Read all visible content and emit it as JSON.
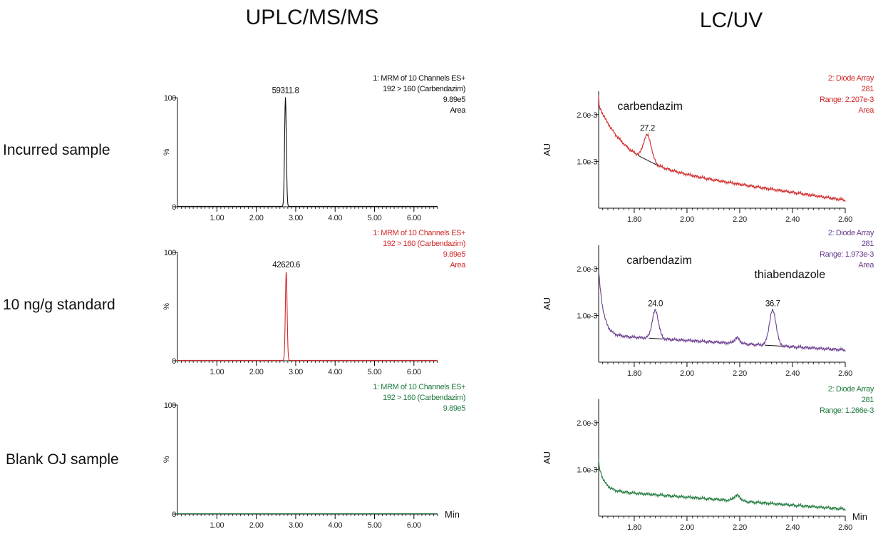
{
  "headers": {
    "left": "UPLC/MS/MS",
    "right": "LC/UV"
  },
  "row_labels": [
    "Incurred sample",
    "10 ng/g standard",
    "Blank OJ sample"
  ],
  "min_label": "Min",
  "colors": {
    "row1": "#d22828",
    "row2": "#6a3d8f",
    "row3": "#1e7a3c",
    "black": "#111111"
  },
  "chart_data": [
    {
      "id": "ms-1",
      "type": "line",
      "technique": "UPLC/MS/MS",
      "row_label": "Incurred sample",
      "trace_color": "black",
      "info_color": "black",
      "xlim": [
        0,
        6.6
      ],
      "ylim": [
        0,
        100
      ],
      "show_y_label": true,
      "y_label": "%",
      "y_ticks": [
        0,
        100
      ],
      "y_tick_labels": [
        "0",
        "100"
      ],
      "x_ticks": [
        1.0,
        2.0,
        3.0,
        4.0,
        5.0,
        6.0
      ],
      "x_tick_labels": [
        "1.00",
        "2.00",
        "3.00",
        "4.00",
        "5.00",
        "6.00"
      ],
      "info": [
        "1: MRM of 10 Channels ES+",
        "192 > 160 (Carbendazim)",
        "9.89e5",
        "Area"
      ],
      "peaks": [
        {
          "center": 2.74,
          "width": 0.022,
          "height": 100,
          "label": "59311.8"
        }
      ],
      "baseline": 0.4
    },
    {
      "id": "ms-2",
      "type": "line",
      "technique": "UPLC/MS/MS",
      "row_label": "10 ng/g standard",
      "trace_color": "row1",
      "info_color": "row1",
      "xlim": [
        0,
        6.6
      ],
      "ylim": [
        0,
        100
      ],
      "show_y_label": true,
      "y_label": "%",
      "y_ticks": [
        0,
        100
      ],
      "y_tick_labels": [
        "0",
        "100"
      ],
      "x_ticks": [
        1.0,
        2.0,
        3.0,
        4.0,
        5.0,
        6.0
      ],
      "x_tick_labels": [
        "1.00",
        "2.00",
        "3.00",
        "4.00",
        "5.00",
        "6.00"
      ],
      "info": [
        "1: MRM of 10 Channels ES+",
        "192 > 160 (Carbendazim)",
        "9.89e5",
        "Area"
      ],
      "peaks": [
        {
          "center": 2.76,
          "width": 0.022,
          "height": 82,
          "label": "42620.6"
        }
      ],
      "baseline": 0.4
    },
    {
      "id": "ms-3",
      "type": "line",
      "technique": "UPLC/MS/MS",
      "row_label": "Blank OJ sample",
      "trace_color": "row3",
      "info_color": "row3",
      "xlim": [
        0,
        6.6
      ],
      "ylim": [
        0,
        100
      ],
      "show_y_label": true,
      "y_label": "%",
      "y_ticks": [
        0,
        100
      ],
      "y_tick_labels": [
        "0",
        "100"
      ],
      "x_ticks": [
        1.0,
        2.0,
        3.0,
        4.0,
        5.0,
        6.0
      ],
      "x_tick_labels": [
        "1.00",
        "2.00",
        "3.00",
        "4.00",
        "5.00",
        "6.00"
      ],
      "info": [
        "1: MRM of 10 Channels ES+",
        "192 > 160 (Carbendazim)",
        "9.89e5"
      ],
      "peaks": [],
      "baseline": 0.4,
      "min_label": true
    },
    {
      "id": "uv-1",
      "type": "line",
      "technique": "LC/UV",
      "row_label": "Incurred sample",
      "trace_color": "row1",
      "info_color": "row1",
      "xlim": [
        1.665,
        2.6
      ],
      "ylim": [
        0,
        0.0025
      ],
      "show_y_label": true,
      "y_label": "AU",
      "y_ticks": [
        0.001,
        0.002
      ],
      "y_tick_labels": [
        "1.0e-3",
        "2.0e-3"
      ],
      "x_ticks": [
        1.8,
        2.0,
        2.2,
        2.4,
        2.6
      ],
      "x_tick_labels": [
        "1.80",
        "2.00",
        "2.20",
        "2.40",
        "2.60"
      ],
      "info": [
        "2: Diode Array",
        "281",
        "Range: 2.207e-3",
        "Area"
      ],
      "decay": {
        "start": 0.0024,
        "amp": 0.00125,
        "rate": 9.5,
        "baseline": 0.00095,
        "slope": 0.00078
      },
      "peaks": [
        {
          "center": 1.85,
          "width": 0.015,
          "height": 0.00055,
          "label": "27.2",
          "area_start": 1.815,
          "area_end": 1.89
        }
      ],
      "compound_labels": [
        {
          "text": "carbendazim",
          "x": 1.86,
          "y": 0.0021
        }
      ]
    },
    {
      "id": "uv-2",
      "type": "line",
      "technique": "LC/UV",
      "row_label": "10 ng/g standard",
      "trace_color": "row2",
      "info_color": "row2",
      "xlim": [
        1.665,
        2.6
      ],
      "ylim": [
        0,
        0.0025
      ],
      "show_y_label": true,
      "y_label": "AU",
      "y_ticks": [
        0.001,
        0.002
      ],
      "y_tick_labels": [
        "1.0e-3",
        "2.0e-3"
      ],
      "x_ticks": [
        1.8,
        2.0,
        2.2,
        2.4,
        2.6
      ],
      "x_tick_labels": [
        "1.80",
        "2.00",
        "2.20",
        "2.40",
        "2.60"
      ],
      "info": [
        "2: Diode Array",
        "281",
        "Range: 1.973e-3",
        "Area"
      ],
      "decay": {
        "start": 0.0018,
        "amp": 0.0014,
        "rate": 55,
        "baseline": 0.00058,
        "slope": 0.00032
      },
      "peaks": [
        {
          "center": 1.88,
          "width": 0.012,
          "height": 0.0006,
          "label": "24.0",
          "area_start": 1.855,
          "area_end": 1.91
        },
        {
          "center": 2.325,
          "width": 0.013,
          "height": 0.00075,
          "label": "36.7",
          "area_start": 2.295,
          "area_end": 2.36
        }
      ],
      "bumps": [
        {
          "center": 2.19,
          "width": 0.01,
          "height": 0.00012
        }
      ],
      "compound_labels": [
        {
          "text": "carbendazim",
          "x": 1.895,
          "y": 0.0021
        },
        {
          "text": "thiabendazole",
          "x": 2.39,
          "y": 0.0018
        }
      ]
    },
    {
      "id": "uv-3",
      "type": "line",
      "technique": "LC/UV",
      "row_label": "Blank OJ sample",
      "trace_color": "row3",
      "info_color": "row3",
      "xlim": [
        1.665,
        2.6
      ],
      "ylim": [
        0,
        0.0025
      ],
      "show_y_label": true,
      "y_label": "AU",
      "y_ticks": [
        0.001,
        0.002
      ],
      "y_tick_labels": [
        "1.0e-3",
        "2.0e-3"
      ],
      "x_ticks": [
        1.8,
        2.0,
        2.2,
        2.4,
        2.6
      ],
      "x_tick_labels": [
        "1.80",
        "2.00",
        "2.20",
        "2.40",
        "2.60"
      ],
      "info": [
        "2: Diode Array",
        "281",
        "Range: 1.266e-3"
      ],
      "decay": {
        "start": 0.0012,
        "amp": 0.00055,
        "rate": 45,
        "baseline": 0.00055,
        "slope": 0.0004
      },
      "peaks": [],
      "bumps": [
        {
          "center": 2.19,
          "width": 0.012,
          "height": 0.00012
        }
      ],
      "min_label": true
    }
  ]
}
